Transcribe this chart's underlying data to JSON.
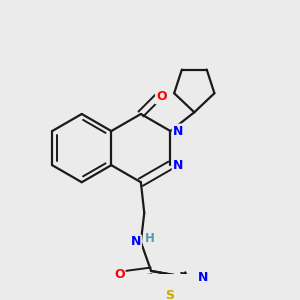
{
  "background_color": "#ebebeb",
  "bond_color": "#1a1a1a",
  "atom_colors": {
    "N": "#0000ff",
    "O": "#ff0000",
    "S": "#ccaa00",
    "H": "#5599aa",
    "C": "#1a1a1a"
  },
  "figsize": [
    3.0,
    3.0
  ],
  "dpi": 100
}
